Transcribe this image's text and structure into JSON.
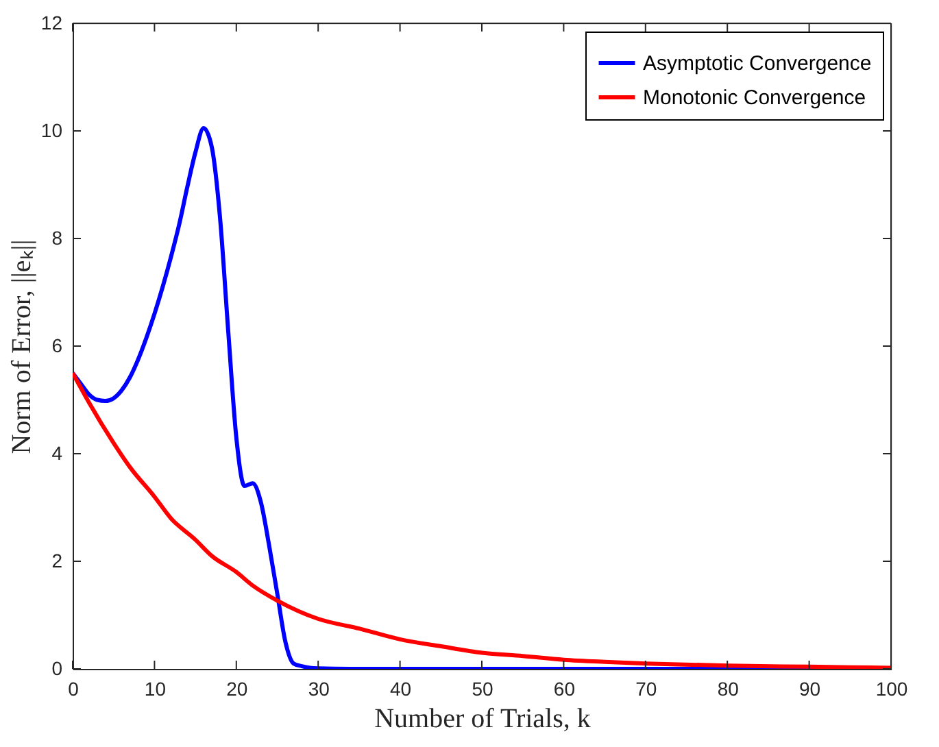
{
  "chart_data": {
    "type": "line",
    "xlabel": "Number of Trials, k",
    "ylabel": "Norm of Error, ||eₖ||",
    "xlim": [
      0,
      100
    ],
    "xticks": [
      0,
      10,
      20,
      30,
      40,
      50,
      60,
      70,
      80,
      90,
      100
    ],
    "ylim": [
      0,
      12
    ],
    "yticks": [
      0,
      2,
      4,
      6,
      8,
      10,
      12
    ],
    "grid": false,
    "legend": "top right",
    "marker": "none",
    "line_style": "solid",
    "series": [
      {
        "name": "Asymptotic Convergence",
        "color": "#0000ff",
        "x": [
          0,
          1,
          2,
          3,
          4,
          5,
          6,
          7,
          8,
          9,
          10,
          11,
          12,
          13,
          14,
          15,
          16,
          17,
          18,
          19,
          20,
          21,
          22,
          23,
          24,
          25,
          26,
          27,
          28,
          29,
          30,
          35,
          40,
          50,
          60,
          70,
          80,
          90,
          100
        ],
        "values": [
          5.5,
          5.3,
          5.1,
          5.0,
          4.98,
          5.03,
          5.18,
          5.42,
          5.75,
          6.15,
          6.6,
          7.1,
          7.65,
          8.25,
          8.95,
          9.6,
          10.05,
          9.7,
          8.4,
          6.3,
          4.3,
          3.4,
          3.45,
          3.1,
          2.3,
          1.4,
          0.5,
          0.1,
          0.05,
          0.02,
          0.01,
          0,
          0,
          0,
          0,
          0,
          0,
          0,
          0
        ]
      },
      {
        "name": "Monotonic Convergence",
        "color": "#ff0000",
        "x": [
          0,
          2,
          5,
          7,
          10,
          12,
          15,
          17,
          20,
          22,
          25,
          30,
          35,
          40,
          45,
          50,
          55,
          60,
          65,
          70,
          80,
          90,
          100
        ],
        "values": [
          5.5,
          4.95,
          4.2,
          3.75,
          3.2,
          2.8,
          2.4,
          2.1,
          1.8,
          1.55,
          1.27,
          0.93,
          0.75,
          0.55,
          0.42,
          0.3,
          0.24,
          0.17,
          0.13,
          0.1,
          0.06,
          0.04,
          0.02
        ]
      }
    ]
  }
}
